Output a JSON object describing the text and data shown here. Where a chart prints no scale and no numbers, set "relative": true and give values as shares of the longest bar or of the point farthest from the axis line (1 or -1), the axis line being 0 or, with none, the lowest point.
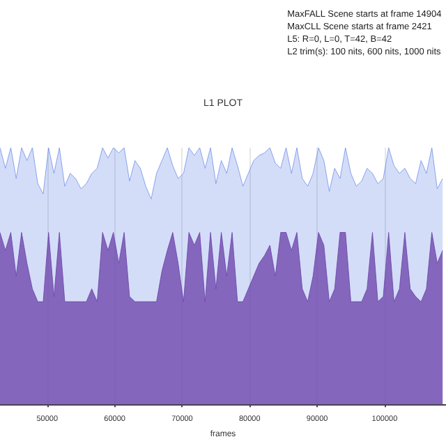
{
  "chart_data": {
    "type": "area",
    "title": "L1 PLOT",
    "xlabel": "frames",
    "annotations": [
      "MaxFALL Scene starts at frame 14904",
      "MaxCLL Scene starts at frame 2421",
      "L5: R=0, L=0, T=42, B=42",
      "L2 trim(s): 100 nits, 600 nits, 1000 nits"
    ],
    "relative": true,
    "grid": "x",
    "tick_labels": "x",
    "xlim": [
      43000,
      109100
    ],
    "xticks": [
      50000,
      60000,
      70000,
      80000,
      90000,
      100000
    ],
    "x": [
      43000,
      43800,
      44600,
      45400,
      46200,
      47000,
      47800,
      48600,
      49400,
      50200,
      51000,
      51800,
      52600,
      53400,
      54200,
      55000,
      55800,
      56600,
      57400,
      58200,
      59000,
      59800,
      60600,
      61400,
      62200,
      63000,
      63800,
      64600,
      65400,
      66200,
      67000,
      67800,
      68600,
      69400,
      70200,
      71000,
      71800,
      72600,
      73400,
      74200,
      75000,
      75800,
      76600,
      77400,
      78200,
      79000,
      79800,
      80600,
      81400,
      82200,
      83000,
      83800,
      84600,
      85400,
      86200,
      87000,
      87800,
      88600,
      89400,
      90200,
      91000,
      91800,
      92600,
      93400,
      94200,
      95000,
      95800,
      96600,
      97400,
      98200,
      99000,
      99800,
      100600,
      101400,
      102200,
      103000,
      103800,
      104600,
      105400,
      106200,
      107000,
      107800,
      108600
    ],
    "series": [
      {
        "color": "#6f8fe8",
        "values": [
          1,
          0.92,
          1,
          0.88,
          1,
          0.95,
          1,
          0.86,
          0.82,
          1,
          0.9,
          1,
          0.85,
          0.9,
          0.88,
          0.84,
          0.86,
          0.9,
          0.92,
          1,
          0.96,
          1,
          0.98,
          1,
          0.87,
          0.95,
          0.92,
          0.85,
          0.8,
          0.9,
          0.95,
          1,
          0.93,
          0.88,
          0.9,
          1,
          0.97,
          1,
          0.92,
          1,
          0.86,
          0.95,
          0.9,
          1,
          0.93,
          0.85,
          0.9,
          0.95,
          0.97,
          0.98,
          1,
          0.94,
          0.92,
          1,
          0.9,
          1,
          0.88,
          0.85,
          0.9,
          1,
          0.95,
          0.83,
          0.92,
          0.88,
          1,
          0.9,
          0.85,
          0.87,
          0.92,
          0.9,
          0.86,
          0.88,
          1,
          0.93,
          0.9,
          0.92,
          0.88,
          0.86,
          0.95,
          0.9,
          1,
          0.84,
          0.88
        ]
      },
      {
        "color": "#6a3fa8",
        "values": [
          0.67,
          0.6,
          0.67,
          0.5,
          0.67,
          0.55,
          0.45,
          0.4,
          0.4,
          0.67,
          0.42,
          0.67,
          0.4,
          0.4,
          0.4,
          0.4,
          0.4,
          0.45,
          0.4,
          0.67,
          0.6,
          0.67,
          0.55,
          0.67,
          0.42,
          0.4,
          0.4,
          0.4,
          0.4,
          0.4,
          0.52,
          0.6,
          0.67,
          0.55,
          0.4,
          0.67,
          0.62,
          0.67,
          0.4,
          0.67,
          0.45,
          0.67,
          0.5,
          0.67,
          0.4,
          0.4,
          0.45,
          0.5,
          0.55,
          0.58,
          0.62,
          0.5,
          0.67,
          0.67,
          0.6,
          0.67,
          0.45,
          0.4,
          0.5,
          0.67,
          0.62,
          0.4,
          0.45,
          0.67,
          0.67,
          0.4,
          0.4,
          0.4,
          0.45,
          0.67,
          0.4,
          0.42,
          0.67,
          0.4,
          0.45,
          0.67,
          0.45,
          0.42,
          0.4,
          0.45,
          0.67,
          0.55,
          0.6
        ]
      }
    ]
  }
}
